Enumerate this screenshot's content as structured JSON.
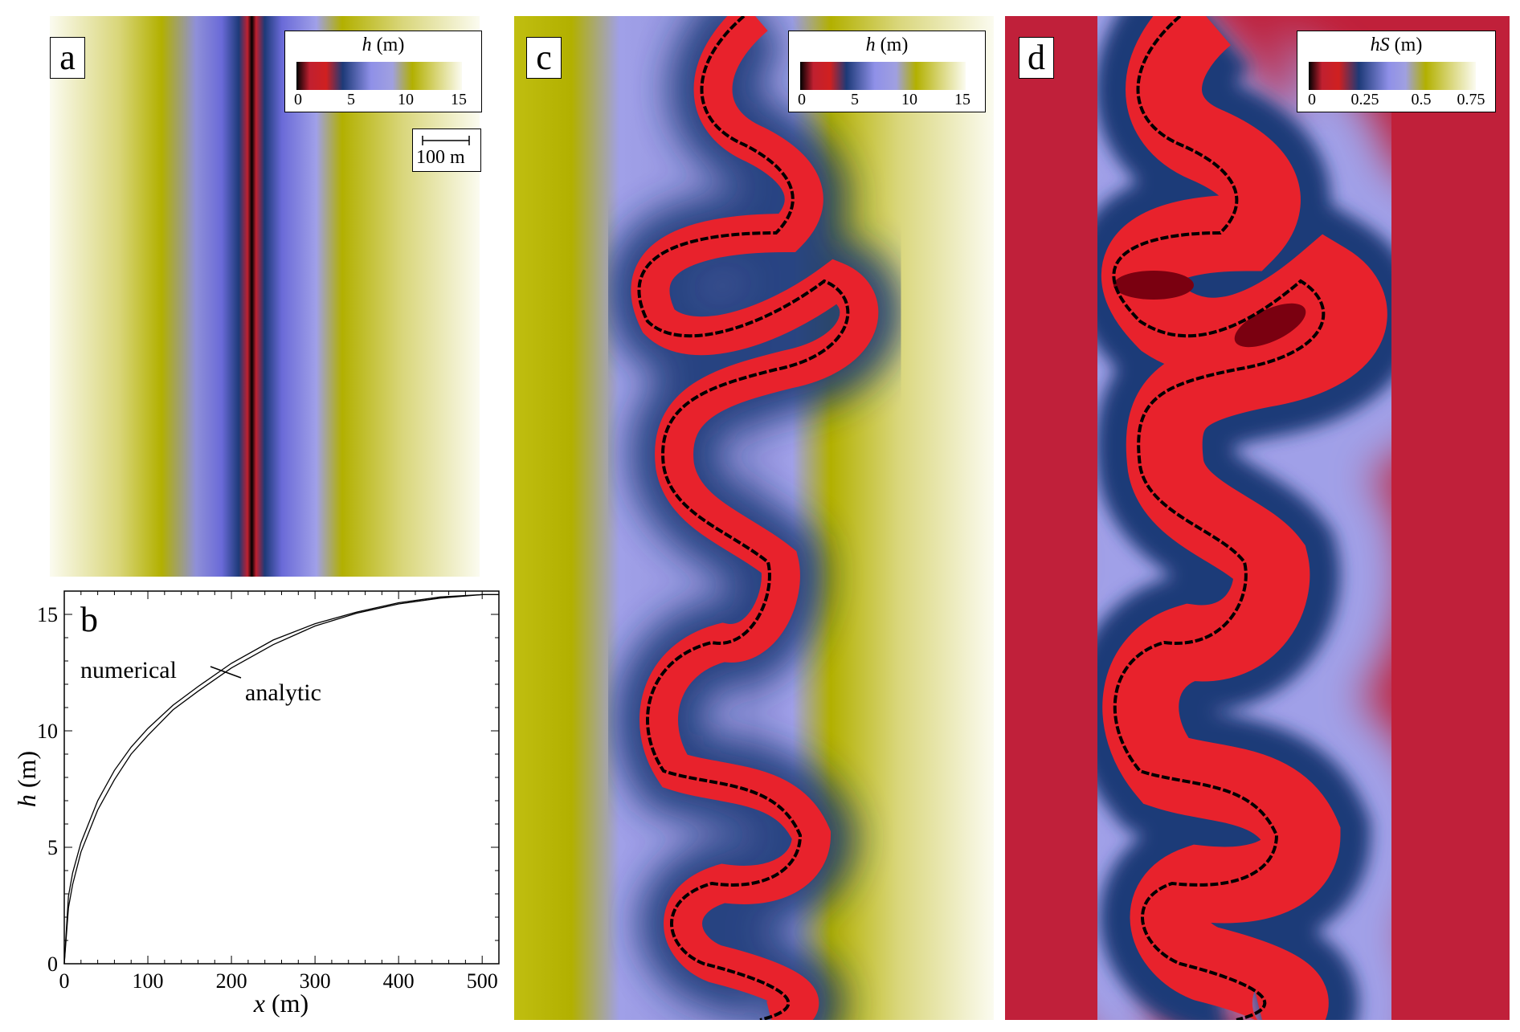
{
  "panels": {
    "a": {
      "letter": "a"
    },
    "b": {
      "letter": "b"
    },
    "c": {
      "letter": "c"
    },
    "d": {
      "letter": "d"
    }
  },
  "colorbar_h_a": {
    "var": "h",
    "unit": " (m)",
    "ticks": [
      "0",
      "5",
      "10",
      "15"
    ]
  },
  "colorbar_h_c": {
    "var": "h",
    "unit": " (m)",
    "ticks": [
      "0",
      "5",
      "10",
      "15"
    ]
  },
  "colorbar_hs_d": {
    "var": "hS",
    "unit": " (m)",
    "ticks": [
      "0",
      "0.25",
      "0.5",
      "0.75"
    ]
  },
  "scale_bar": {
    "label": "100 m"
  },
  "chart_data": {
    "type": "line",
    "xlabel_var": "x",
    "xlabel_unit": " (m)",
    "ylabel_var": "h",
    "ylabel_unit": " (m)",
    "xlim": [
      0,
      520
    ],
    "ylim": [
      0,
      16
    ],
    "x_ticks": [
      "0",
      "100",
      "200",
      "300",
      "400",
      "500"
    ],
    "y_ticks": [
      "0",
      "5",
      "10",
      "15"
    ],
    "series": [
      {
        "name": "numerical",
        "x": [
          0,
          5,
          10,
          20,
          40,
          60,
          80,
          100,
          130,
          160,
          200,
          250,
          300,
          350,
          400,
          450,
          500,
          520
        ],
        "y": [
          0,
          2.9,
          3.9,
          5.2,
          7.0,
          8.3,
          9.3,
          10.1,
          11.1,
          11.9,
          12.9,
          13.9,
          14.6,
          15.1,
          15.5,
          15.75,
          15.85,
          15.85
        ]
      },
      {
        "name": "analytic",
        "x": [
          0,
          5,
          10,
          20,
          40,
          60,
          80,
          100,
          130,
          160,
          200,
          250,
          300,
          350,
          400,
          450,
          500,
          520
        ],
        "y": [
          0,
          2.4,
          3.4,
          4.8,
          6.6,
          7.9,
          9.0,
          9.8,
          10.9,
          11.7,
          12.7,
          13.7,
          14.5,
          15.05,
          15.45,
          15.7,
          15.85,
          15.85
        ]
      }
    ]
  }
}
